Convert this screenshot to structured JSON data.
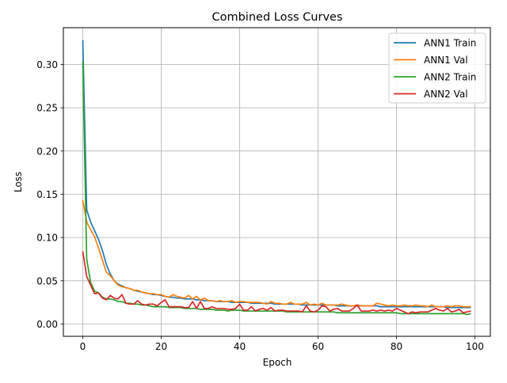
{
  "chart_data": {
    "type": "line",
    "title": "Combined Loss Curves",
    "xlabel": "Epoch",
    "ylabel": "Loss",
    "xlim": [
      -4.95,
      103.95
    ],
    "ylim": [
      -0.0142,
      0.3425
    ],
    "xticks": [
      0,
      20,
      40,
      60,
      80,
      100
    ],
    "xtick_labels": [
      "0",
      "20",
      "40",
      "60",
      "80",
      "100"
    ],
    "yticks": [
      0.0,
      0.05,
      0.1,
      0.15,
      0.2,
      0.25,
      0.3
    ],
    "ytick_labels": [
      "0.00",
      "0.05",
      "0.10",
      "0.15",
      "0.20",
      "0.25",
      "0.30"
    ],
    "grid": true,
    "legend_position": "top-right",
    "x": [
      0,
      1,
      2,
      3,
      4,
      5,
      6,
      7,
      8,
      9,
      10,
      11,
      12,
      13,
      14,
      15,
      16,
      17,
      18,
      19,
      20,
      21,
      22,
      23,
      24,
      25,
      26,
      27,
      28,
      29,
      30,
      31,
      32,
      33,
      34,
      35,
      36,
      37,
      38,
      39,
      40,
      41,
      42,
      43,
      44,
      45,
      46,
      47,
      48,
      49,
      50,
      51,
      52,
      53,
      54,
      55,
      56,
      57,
      58,
      59,
      60,
      61,
      62,
      63,
      64,
      65,
      66,
      67,
      68,
      69,
      70,
      71,
      72,
      73,
      74,
      75,
      76,
      77,
      78,
      79,
      80,
      81,
      82,
      83,
      84,
      85,
      86,
      87,
      88,
      89,
      90,
      91,
      92,
      93,
      94,
      95,
      96,
      97,
      98,
      99
    ],
    "series": [
      {
        "name": "ANN1 Train",
        "color": "#1f77b4",
        "values": [
          0.328,
          0.132,
          0.118,
          0.108,
          0.098,
          0.085,
          0.069,
          0.058,
          0.05,
          0.046,
          0.044,
          0.042,
          0.041,
          0.039,
          0.038,
          0.037,
          0.036,
          0.035,
          0.034,
          0.034,
          0.033,
          0.032,
          0.031,
          0.031,
          0.03,
          0.03,
          0.029,
          0.029,
          0.029,
          0.028,
          0.028,
          0.027,
          0.027,
          0.027,
          0.026,
          0.026,
          0.026,
          0.026,
          0.025,
          0.025,
          0.025,
          0.025,
          0.025,
          0.024,
          0.024,
          0.024,
          0.024,
          0.024,
          0.024,
          0.023,
          0.023,
          0.023,
          0.023,
          0.023,
          0.023,
          0.023,
          0.022,
          0.022,
          0.022,
          0.022,
          0.022,
          0.022,
          0.022,
          0.022,
          0.022,
          0.021,
          0.021,
          0.021,
          0.021,
          0.021,
          0.021,
          0.021,
          0.021,
          0.021,
          0.021,
          0.021,
          0.02,
          0.02,
          0.02,
          0.02,
          0.02,
          0.02,
          0.02,
          0.02,
          0.02,
          0.02,
          0.02,
          0.02,
          0.02,
          0.02,
          0.02,
          0.02,
          0.02,
          0.019,
          0.019,
          0.019,
          0.019,
          0.019,
          0.019,
          0.019
        ]
      },
      {
        "name": "ANN1 Val",
        "color": "#ff7f0e",
        "values": [
          0.143,
          0.118,
          0.109,
          0.101,
          0.088,
          0.074,
          0.06,
          0.056,
          0.05,
          0.045,
          0.043,
          0.042,
          0.041,
          0.039,
          0.039,
          0.037,
          0.036,
          0.035,
          0.035,
          0.034,
          0.034,
          0.032,
          0.031,
          0.034,
          0.032,
          0.031,
          0.03,
          0.033,
          0.029,
          0.032,
          0.028,
          0.03,
          0.027,
          0.027,
          0.026,
          0.027,
          0.026,
          0.026,
          0.027,
          0.025,
          0.026,
          0.026,
          0.025,
          0.025,
          0.025,
          0.025,
          0.024,
          0.023,
          0.026,
          0.024,
          0.024,
          0.023,
          0.023,
          0.025,
          0.023,
          0.023,
          0.023,
          0.025,
          0.022,
          0.023,
          0.022,
          0.024,
          0.022,
          0.022,
          0.022,
          0.022,
          0.023,
          0.022,
          0.021,
          0.021,
          0.022,
          0.021,
          0.021,
          0.021,
          0.021,
          0.024,
          0.023,
          0.022,
          0.021,
          0.022,
          0.021,
          0.021,
          0.022,
          0.021,
          0.021,
          0.022,
          0.021,
          0.021,
          0.02,
          0.022,
          0.02,
          0.02,
          0.02,
          0.021,
          0.02,
          0.021,
          0.021,
          0.02,
          0.02,
          0.02
        ]
      },
      {
        "name": "ANN2 Train",
        "color": "#2ca02c",
        "values": [
          0.304,
          0.075,
          0.048,
          0.038,
          0.036,
          0.031,
          0.029,
          0.029,
          0.028,
          0.026,
          0.026,
          0.024,
          0.024,
          0.023,
          0.023,
          0.022,
          0.022,
          0.021,
          0.02,
          0.02,
          0.02,
          0.02,
          0.019,
          0.019,
          0.019,
          0.019,
          0.018,
          0.018,
          0.018,
          0.018,
          0.017,
          0.017,
          0.017,
          0.017,
          0.016,
          0.016,
          0.016,
          0.015,
          0.016,
          0.016,
          0.016,
          0.015,
          0.015,
          0.015,
          0.015,
          0.015,
          0.015,
          0.015,
          0.015,
          0.015,
          0.015,
          0.015,
          0.014,
          0.014,
          0.014,
          0.014,
          0.014,
          0.014,
          0.014,
          0.014,
          0.014,
          0.014,
          0.014,
          0.014,
          0.014,
          0.013,
          0.013,
          0.013,
          0.013,
          0.013,
          0.013,
          0.013,
          0.013,
          0.013,
          0.013,
          0.013,
          0.013,
          0.013,
          0.013,
          0.013,
          0.013,
          0.012,
          0.012,
          0.012,
          0.012,
          0.012,
          0.012,
          0.012,
          0.012,
          0.012,
          0.012,
          0.012,
          0.012,
          0.012,
          0.012,
          0.012,
          0.012,
          0.012,
          0.011,
          0.012
        ]
      },
      {
        "name": "ANN2 Val",
        "color": "#d62728",
        "values": [
          0.084,
          0.055,
          0.045,
          0.035,
          0.036,
          0.03,
          0.028,
          0.033,
          0.03,
          0.029,
          0.034,
          0.024,
          0.023,
          0.023,
          0.027,
          0.023,
          0.022,
          0.023,
          0.023,
          0.021,
          0.025,
          0.028,
          0.02,
          0.02,
          0.02,
          0.02,
          0.019,
          0.019,
          0.026,
          0.018,
          0.026,
          0.018,
          0.018,
          0.02,
          0.018,
          0.018,
          0.018,
          0.017,
          0.017,
          0.018,
          0.023,
          0.016,
          0.016,
          0.02,
          0.015,
          0.017,
          0.018,
          0.016,
          0.019,
          0.015,
          0.016,
          0.016,
          0.015,
          0.015,
          0.015,
          0.015,
          0.014,
          0.021,
          0.015,
          0.014,
          0.016,
          0.021,
          0.02,
          0.015,
          0.017,
          0.018,
          0.015,
          0.015,
          0.015,
          0.018,
          0.022,
          0.015,
          0.015,
          0.015,
          0.016,
          0.015,
          0.016,
          0.015,
          0.016,
          0.015,
          0.018,
          0.016,
          0.014,
          0.012,
          0.014,
          0.013,
          0.014,
          0.014,
          0.014,
          0.016,
          0.018,
          0.016,
          0.015,
          0.018,
          0.014,
          0.015,
          0.017,
          0.013,
          0.014,
          0.015
        ]
      }
    ]
  }
}
